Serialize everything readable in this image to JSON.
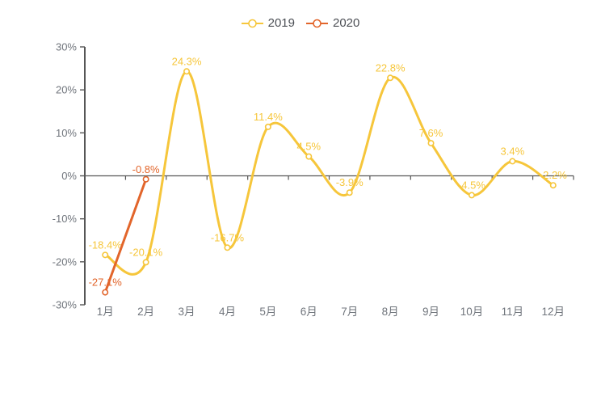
{
  "chart_data": {
    "type": "line",
    "title": "",
    "categories": [
      "1月",
      "2月",
      "3月",
      "4月",
      "5月",
      "6月",
      "7月",
      "8月",
      "9月",
      "10月",
      "11月",
      "12月"
    ],
    "series": [
      {
        "name": "2019",
        "color": "#f6c63b",
        "smooth": true,
        "values": [
          -18.4,
          -20.1,
          24.3,
          -16.7,
          11.4,
          4.5,
          -3.9,
          22.8,
          7.6,
          -4.5,
          3.4,
          -2.2
        ],
        "labels": [
          "-18.4%",
          "-20.1%",
          "24.3%",
          "-16.7%",
          "11.4%",
          "4.5%",
          "-3.9%",
          "22.8%",
          "7.6%",
          "-4.5%",
          "3.4%",
          "-2.2%"
        ]
      },
      {
        "name": "2020",
        "color": "#e2652b",
        "smooth": false,
        "values": [
          -27.1,
          -0.8
        ],
        "labels": [
          "-27.1%",
          "-0.8%"
        ]
      }
    ],
    "y_axis": {
      "min": -30,
      "max": 30,
      "interval": 10,
      "tick_labels": [
        "30%",
        "20%",
        "10%",
        "0%",
        "-10%",
        "-20%",
        "-30%"
      ],
      "unit": "%"
    },
    "x_axis": {
      "label_color": "#70757c",
      "axis_on_zero": true
    },
    "legend_position": "top-center",
    "grid": false,
    "axis_color": "#565656",
    "axis_text_color": "#70757c",
    "marker": "empty-circle",
    "background": "#ffffff"
  }
}
